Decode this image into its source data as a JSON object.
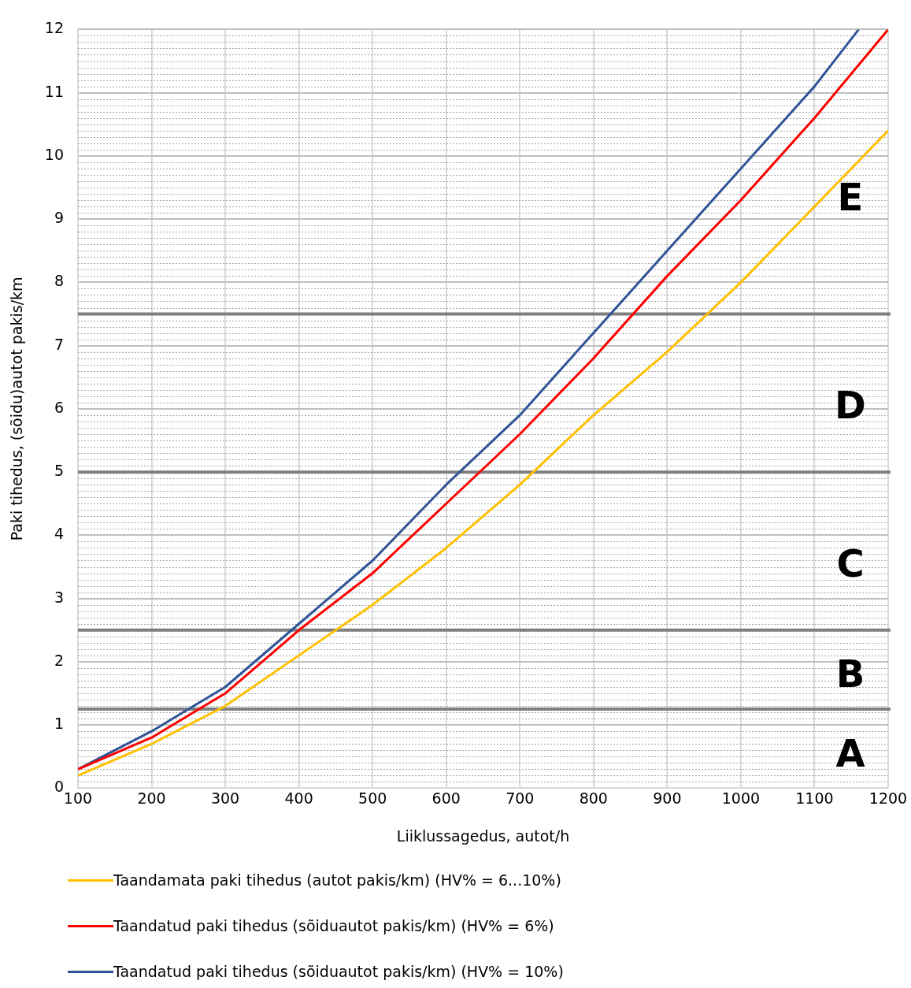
{
  "chart_data": {
    "type": "line",
    "xlabel": "Liiklussagedus, autot/h",
    "ylabel": "Paki tihedus, (sõidu)autot pakis/km",
    "x": [
      100,
      200,
      300,
      400,
      500,
      600,
      700,
      800,
      900,
      1000,
      1100,
      1200
    ],
    "series": [
      {
        "name": "Taandamata paki tihedus (autot pakis/km) (HV% = 6...10%)",
        "color": "#ffc000",
        "values": [
          0.2,
          0.7,
          1.3,
          2.1,
          2.9,
          3.8,
          4.8,
          5.9,
          6.9,
          8.0,
          9.2,
          10.4
        ]
      },
      {
        "name": "Taandatud paki tihedus (sõiduautot pakis/km) (HV% = 6%)",
        "color": "#ff0000",
        "values": [
          0.3,
          0.8,
          1.5,
          2.5,
          3.4,
          4.5,
          5.6,
          6.8,
          8.1,
          9.3,
          10.6,
          12.0
        ]
      },
      {
        "name": "Taandatud paki tihedus (sõiduautot pakis/km) (HV% = 10%)",
        "color": "#2f5597",
        "x": [
          100,
          200,
          300,
          400,
          500,
          600,
          700,
          800,
          900,
          1000,
          1100,
          1160
        ],
        "values": [
          0.3,
          0.9,
          1.6,
          2.6,
          3.6,
          4.8,
          5.9,
          7.2,
          8.5,
          9.8,
          11.1,
          12.0
        ]
      }
    ],
    "xlim": [
      100,
      1200
    ],
    "xticks": [
      100,
      200,
      300,
      400,
      500,
      600,
      700,
      800,
      900,
      1000,
      1100,
      1200
    ],
    "ylim": [
      0,
      12
    ],
    "yticks": [
      0,
      1,
      2,
      3,
      4,
      5,
      6,
      7,
      8,
      9,
      10,
      11,
      12
    ],
    "ref_lines": [
      {
        "axis": "y",
        "value": 1.25,
        "color": "#7f7f7f"
      },
      {
        "axis": "y",
        "value": 2.5,
        "color": "#7f7f7f"
      },
      {
        "axis": "y",
        "value": 5,
        "color": "#7f7f7f"
      },
      {
        "axis": "y",
        "value": 7.5,
        "color": "#7f7f7f"
      }
    ],
    "annotations": [
      "A",
      "B",
      "C",
      "D",
      "E"
    ],
    "grid": true,
    "legend": "bottom",
    "marker": "none",
    "line_style": "solid"
  }
}
